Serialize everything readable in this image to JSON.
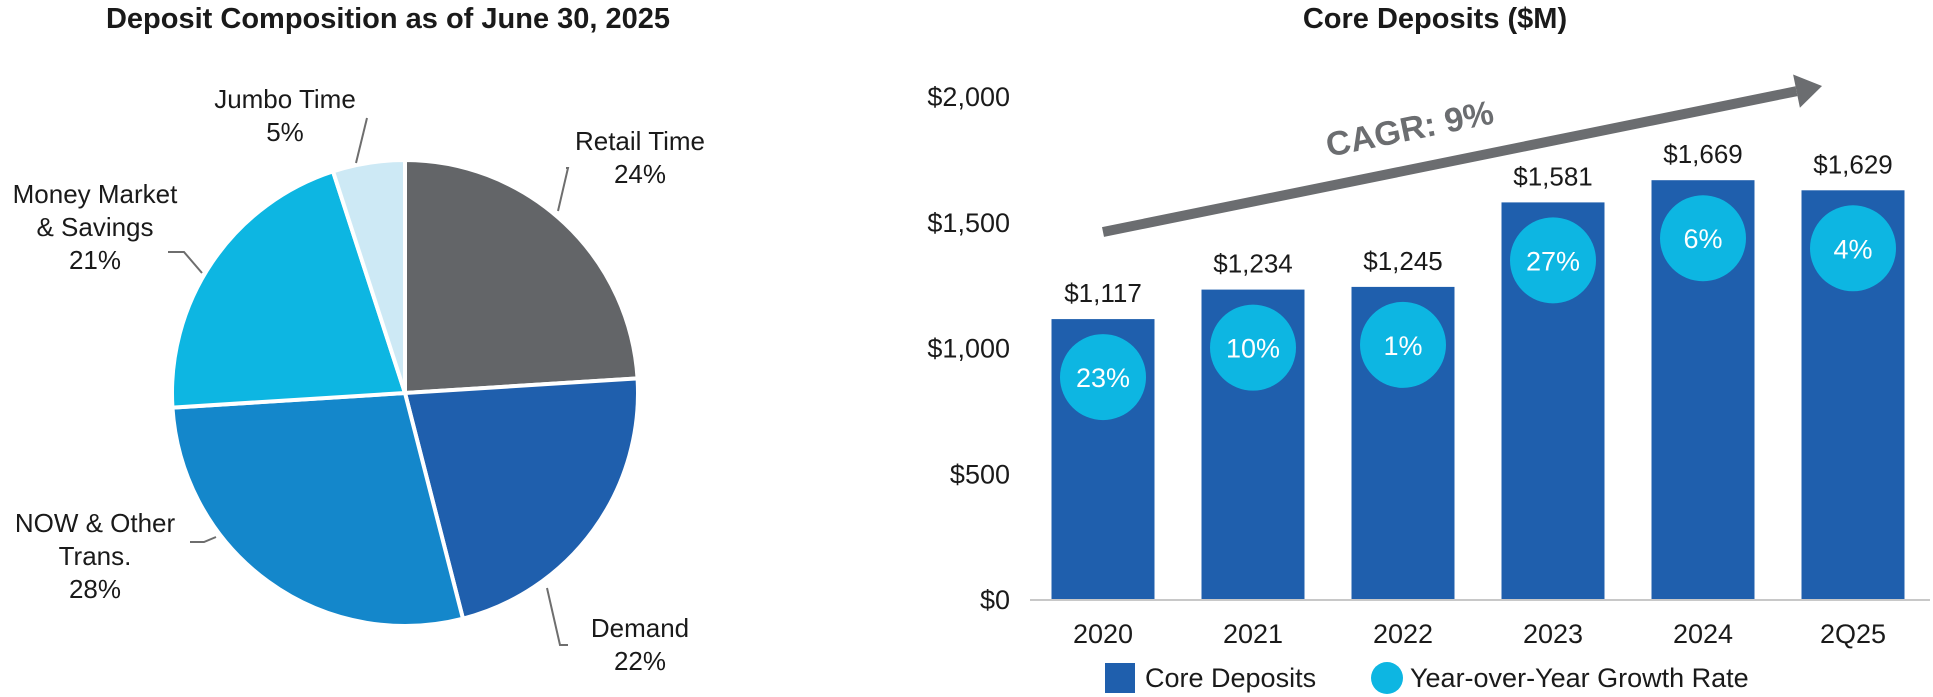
{
  "chart_data": [
    {
      "type": "pie",
      "title": "Deposit Composition as of June 30, 2025",
      "slices": [
        {
          "label_lines": [
            "Retail Time"
          ],
          "pct_text": "24%",
          "value": 24,
          "color": "#636568"
        },
        {
          "label_lines": [
            "Demand"
          ],
          "pct_text": "22%",
          "value": 22,
          "color": "#1f5fad"
        },
        {
          "label_lines": [
            "NOW & Other",
            "Trans."
          ],
          "pct_text": "28%",
          "value": 28,
          "color": "#1487cb"
        },
        {
          "label_lines": [
            "Money Market",
            "& Savings"
          ],
          "pct_text": "21%",
          "value": 21,
          "color": "#0db6e2"
        },
        {
          "label_lines": [
            "Jumbo Time"
          ],
          "pct_text": "5%",
          "value": 5,
          "color": "#cde9f5"
        }
      ]
    },
    {
      "type": "bar",
      "title": "Core Deposits ($M)",
      "categories": [
        "2020",
        "2021",
        "2022",
        "2023",
        "2024",
        "2Q25"
      ],
      "values": [
        1117,
        1234,
        1245,
        1581,
        1669,
        1629
      ],
      "value_labels": [
        "$1,117",
        "$1,234",
        "$1,245",
        "$1,581",
        "$1,669",
        "$1,629"
      ],
      "growth_labels": [
        "23%",
        "10%",
        "1%",
        "27%",
        "6%",
        "4%"
      ],
      "ylim": [
        0,
        2000
      ],
      "yticks": [
        {
          "value": 0,
          "label": "$0"
        },
        {
          "value": 500,
          "label": "$500"
        },
        {
          "value": 1000,
          "label": "$1,000"
        },
        {
          "value": 1500,
          "label": "$1,500"
        },
        {
          "value": 2000,
          "label": "$2,000"
        }
      ],
      "annotation": "CAGR: 9%",
      "legend": [
        {
          "label": "Core Deposits",
          "marker": "square",
          "color": "#1f5fad"
        },
        {
          "label": "Year-over-Year Growth Rate",
          "marker": "circle",
          "color": "#0db6e2"
        }
      ],
      "legend_position": "bottom",
      "bar_color": "#1f5fad",
      "growth_color": "#0db6e2",
      "arrow_color": "#6b6d70"
    }
  ]
}
